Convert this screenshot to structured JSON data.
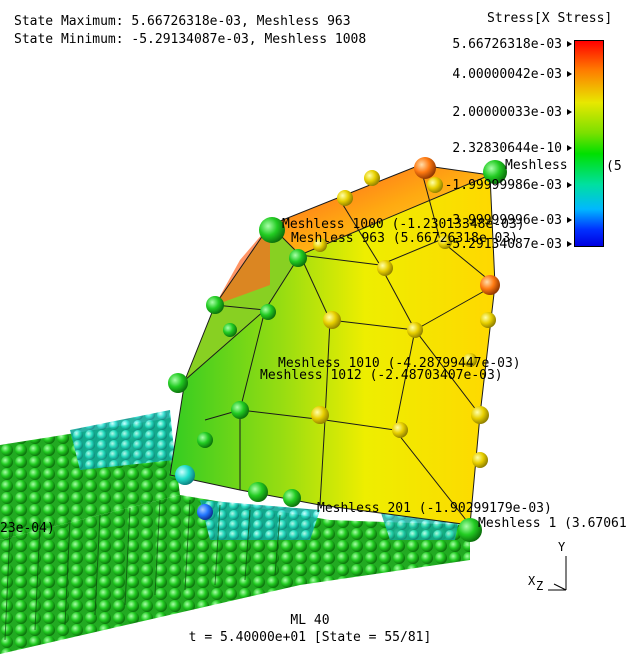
{
  "header": {
    "state_max": "State Maximum: 5.66726318e-03, Meshless 963",
    "state_min": "State Minimum: -5.29134087e-03, Meshless 1008"
  },
  "legend": {
    "title": "Stress[X Stress]",
    "ticks": [
      "5.66726318e-03",
      "4.00000042e-03",
      "2.00000033e-03",
      "2.32830644e-10",
      "-1.99999986e-03",
      "-3.99999996e-03",
      "-5.29134087e-03"
    ],
    "side_label": "(5"
  },
  "annotations": {
    "meshless_top": "Meshless",
    "m1000": "Meshless 1000 (-1.23013348e-03)",
    "m963": "Meshless 963 (5.66726318e-03)",
    "m1010": "Meshless 1010 (-4.28799447e-03)",
    "m1012": "Meshless 1012 (-2.48703407e-03)",
    "m201": "Meshless 201 (-1.90299179e-03)",
    "m1": "Meshless 1 (3.67061",
    "left_value": "23e-04)"
  },
  "axes": {
    "y": "Y",
    "x": "X",
    "z": "Z"
  },
  "footer": {
    "model": "ML 40",
    "time": "t = 5.40000e+01 [State = 55/81]"
  },
  "colors": {
    "hot": "#ff3300",
    "warm": "#ffd000",
    "mid": "#33dd00",
    "cool": "#00ccdd",
    "cold": "#0044ff"
  }
}
